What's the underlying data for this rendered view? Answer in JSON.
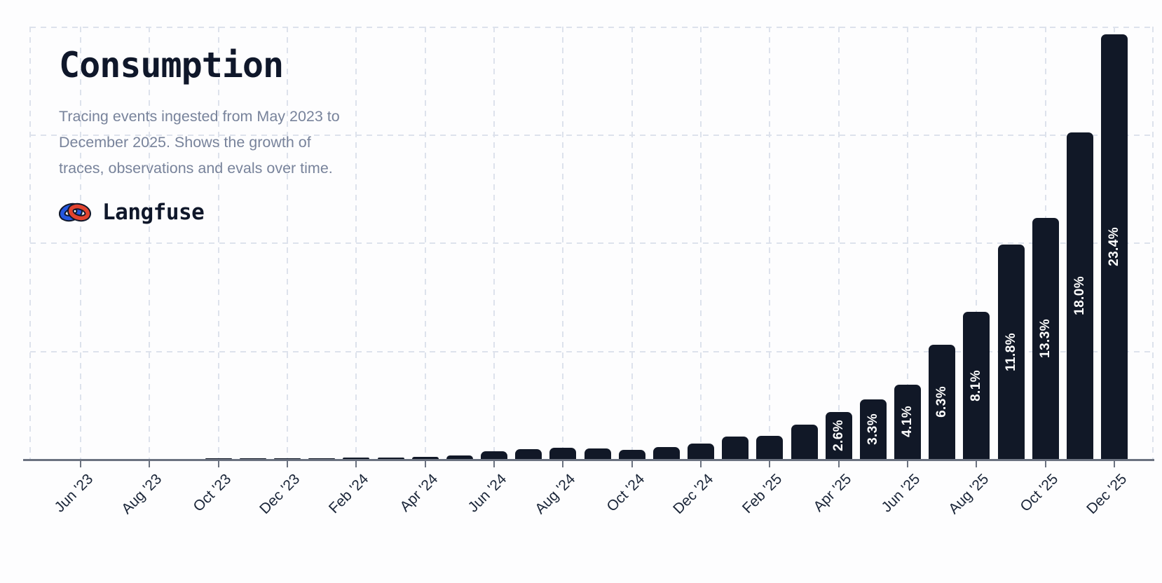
{
  "header": {
    "title": "Consumption",
    "subtitle_lines": [
      "Tracing events ingested from May 2023 to",
      "December 2025. Shows the growth of",
      "traces, observations and evals over time."
    ],
    "brand": "Langfuse"
  },
  "chart_data": {
    "type": "bar",
    "title": "Consumption",
    "x": [
      "May '23",
      "Jun '23",
      "Jul '23",
      "Aug '23",
      "Sep '23",
      "Oct '23",
      "Nov '23",
      "Dec '23",
      "Jan '24",
      "Feb '24",
      "Mar '24",
      "Apr '24",
      "May '24",
      "Jun '24",
      "Jul '24",
      "Aug '24",
      "Sep '24",
      "Oct '24",
      "Nov '24",
      "Dec '24",
      "Jan '25",
      "Feb '25",
      "Mar '25",
      "Apr '25",
      "May '25",
      "Jun '25",
      "Jul '25",
      "Aug '25",
      "Sep '25",
      "Oct '25",
      "Nov '25",
      "Dec '25"
    ],
    "values_pct": [
      0.005,
      0.008,
      0.01,
      0.012,
      0.015,
      0.02,
      0.025,
      0.03,
      0.04,
      0.06,
      0.08,
      0.1,
      0.2,
      0.42,
      0.55,
      0.6,
      0.57,
      0.49,
      0.64,
      0.85,
      1.25,
      1.27,
      1.9,
      2.6,
      3.3,
      4.1,
      6.3,
      8.1,
      11.8,
      13.3,
      18.0,
      23.4
    ],
    "bar_labels": [
      null,
      null,
      null,
      null,
      null,
      null,
      null,
      null,
      null,
      null,
      null,
      null,
      null,
      null,
      null,
      null,
      null,
      null,
      null,
      null,
      null,
      null,
      null,
      "2.6%",
      "3.3%",
      "4.1%",
      "6.3%",
      "8.1%",
      "11.8%",
      "13.3%",
      "18.0%",
      "23.4%"
    ],
    "tick_labels": [
      "Jun '23",
      "Aug '23",
      "Oct '23",
      "Dec '23",
      "Feb '24",
      "Apr '24",
      "Jun '24",
      "Aug '24",
      "Oct '24",
      "Dec '24",
      "Feb '25",
      "Apr '25",
      "Jun '25",
      "Aug '25",
      "Oct '25",
      "Dec '25"
    ],
    "tick_start_index": 1,
    "tick_every": 2,
    "xlabel": "",
    "ylabel": "",
    "ylim_pct": [
      0,
      24
    ],
    "grid": "dashed",
    "legend": "none",
    "value_label_rotation_deg": -90
  },
  "colors": {
    "background": "#fdfdfe",
    "bar": "#111827",
    "bar_label_text": "#ffffff",
    "gridline": "#dde2ec",
    "axis": "#6b7280",
    "title_text": "#0f172a",
    "subtitle_text": "#78839b",
    "tick_label_text": "#1a2538",
    "logo_red": "#e2432e",
    "logo_blue": "#2457e0",
    "logo_outline": "#10182b"
  }
}
